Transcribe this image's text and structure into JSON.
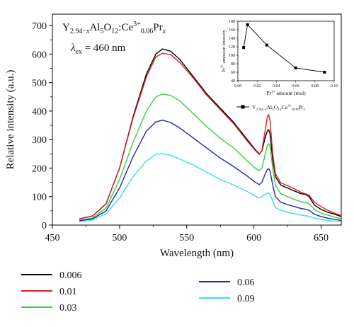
{
  "chart_data": {
    "type": "line",
    "title": "",
    "annotation": {
      "compound_base": "Y",
      "compound_sub1": "2.94−",
      "compound_sub1_var": "x",
      "compound_mid": "Al",
      "compound_sub2": "5",
      "compound_mid2": "O",
      "compound_sub3": "12",
      "compound_mid3": ":Ce",
      "compound_sup": "3+",
      "compound_sub4": "0.06",
      "compound_end": "Pr",
      "compound_end_var": "x",
      "excitation_symbol": "λ",
      "excitation_sub": "ex",
      "excitation_value": " = 460 nm"
    },
    "xlabel": "Wavelength (nm)",
    "ylabel": "Relative intensity (a.u.)",
    "xlim": [
      450,
      665
    ],
    "ylim": [
      0,
      740
    ],
    "x_ticks": [
      450,
      500,
      550,
      600,
      650
    ],
    "y_ticks": [
      0,
      100,
      200,
      300,
      400,
      500,
      600,
      700
    ],
    "grid": false,
    "legend_position": "bottom",
    "series": [
      {
        "name": "0.006",
        "color": "#000000",
        "points": [
          [
            470,
            22
          ],
          [
            480,
            32
          ],
          [
            490,
            75
          ],
          [
            500,
            200
          ],
          [
            510,
            380
          ],
          [
            520,
            530
          ],
          [
            527,
            600
          ],
          [
            532,
            618
          ],
          [
            538,
            610
          ],
          [
            545,
            580
          ],
          [
            555,
            520
          ],
          [
            565,
            460
          ],
          [
            575,
            410
          ],
          [
            585,
            360
          ],
          [
            595,
            300
          ],
          [
            601,
            265
          ],
          [
            604,
            250
          ],
          [
            606,
            260
          ],
          [
            608,
            300
          ],
          [
            610,
            330
          ],
          [
            611,
            335
          ],
          [
            612,
            320
          ],
          [
            614,
            230
          ],
          [
            616,
            170
          ],
          [
            620,
            140
          ],
          [
            625,
            130
          ],
          [
            630,
            120
          ],
          [
            635,
            110
          ],
          [
            638,
            108
          ],
          [
            641,
            100
          ],
          [
            645,
            70
          ],
          [
            650,
            55
          ],
          [
            655,
            45
          ],
          [
            660,
            38
          ],
          [
            665,
            30
          ]
        ]
      },
      {
        "name": "0.01",
        "color": "#d42020",
        "points": [
          [
            470,
            22
          ],
          [
            480,
            32
          ],
          [
            490,
            75
          ],
          [
            500,
            200
          ],
          [
            510,
            375
          ],
          [
            520,
            520
          ],
          [
            527,
            590
          ],
          [
            532,
            603
          ],
          [
            538,
            598
          ],
          [
            545,
            570
          ],
          [
            555,
            515
          ],
          [
            565,
            455
          ],
          [
            575,
            405
          ],
          [
            585,
            355
          ],
          [
            595,
            295
          ],
          [
            601,
            262
          ],
          [
            604,
            248
          ],
          [
            606,
            262
          ],
          [
            608,
            320
          ],
          [
            610,
            380
          ],
          [
            611,
            388
          ],
          [
            612,
            365
          ],
          [
            614,
            250
          ],
          [
            616,
            180
          ],
          [
            620,
            148
          ],
          [
            625,
            138
          ],
          [
            630,
            128
          ],
          [
            635,
            115
          ],
          [
            638,
            110
          ],
          [
            641,
            105
          ],
          [
            645,
            80
          ],
          [
            650,
            65
          ],
          [
            655,
            52
          ],
          [
            660,
            42
          ],
          [
            665,
            33
          ]
        ]
      },
      {
        "name": "0.03",
        "color": "#3ccf3c",
        "points": [
          [
            470,
            18
          ],
          [
            480,
            25
          ],
          [
            490,
            60
          ],
          [
            500,
            160
          ],
          [
            510,
            290
          ],
          [
            520,
            400
          ],
          [
            527,
            450
          ],
          [
            532,
            460
          ],
          [
            538,
            455
          ],
          [
            545,
            435
          ],
          [
            555,
            390
          ],
          [
            565,
            345
          ],
          [
            575,
            305
          ],
          [
            585,
            270
          ],
          [
            595,
            225
          ],
          [
            601,
            200
          ],
          [
            604,
            190
          ],
          [
            606,
            200
          ],
          [
            608,
            240
          ],
          [
            610,
            280
          ],
          [
            611,
            286
          ],
          [
            612,
            275
          ],
          [
            614,
            200
          ],
          [
            616,
            140
          ],
          [
            620,
            110
          ],
          [
            625,
            100
          ],
          [
            630,
            90
          ],
          [
            635,
            82
          ],
          [
            638,
            80
          ],
          [
            641,
            75
          ],
          [
            645,
            55
          ],
          [
            650,
            42
          ],
          [
            655,
            35
          ],
          [
            660,
            28
          ],
          [
            665,
            22
          ]
        ]
      },
      {
        "name": "0.06",
        "color": "#2323bf",
        "points": [
          [
            470,
            15
          ],
          [
            480,
            22
          ],
          [
            490,
            50
          ],
          [
            500,
            130
          ],
          [
            510,
            240
          ],
          [
            520,
            330
          ],
          [
            527,
            362
          ],
          [
            532,
            368
          ],
          [
            538,
            360
          ],
          [
            545,
            340
          ],
          [
            555,
            305
          ],
          [
            565,
            270
          ],
          [
            575,
            235
          ],
          [
            585,
            205
          ],
          [
            595,
            172
          ],
          [
            601,
            150
          ],
          [
            604,
            142
          ],
          [
            606,
            150
          ],
          [
            608,
            175
          ],
          [
            610,
            195
          ],
          [
            611,
            198
          ],
          [
            612,
            190
          ],
          [
            614,
            140
          ],
          [
            616,
            100
          ],
          [
            620,
            80
          ],
          [
            625,
            72
          ],
          [
            630,
            65
          ],
          [
            635,
            58
          ],
          [
            638,
            56
          ],
          [
            641,
            52
          ],
          [
            645,
            38
          ],
          [
            650,
            30
          ],
          [
            655,
            24
          ],
          [
            660,
            20
          ],
          [
            665,
            16
          ]
        ]
      },
      {
        "name": "0.09",
        "color": "#35e2ea",
        "points": [
          [
            470,
            12
          ],
          [
            480,
            18
          ],
          [
            490,
            40
          ],
          [
            500,
            95
          ],
          [
            510,
            170
          ],
          [
            520,
            225
          ],
          [
            527,
            248
          ],
          [
            532,
            250
          ],
          [
            538,
            245
          ],
          [
            545,
            232
          ],
          [
            555,
            210
          ],
          [
            565,
            185
          ],
          [
            575,
            160
          ],
          [
            585,
            140
          ],
          [
            595,
            118
          ],
          [
            601,
            102
          ],
          [
            604,
            95
          ],
          [
            606,
            100
          ],
          [
            608,
            108
          ],
          [
            610,
            112
          ],
          [
            611,
            113
          ],
          [
            612,
            108
          ],
          [
            614,
            85
          ],
          [
            616,
            62
          ],
          [
            620,
            52
          ],
          [
            625,
            45
          ],
          [
            630,
            40
          ],
          [
            635,
            35
          ],
          [
            638,
            33
          ],
          [
            641,
            31
          ],
          [
            645,
            24
          ],
          [
            650,
            20
          ],
          [
            655,
            16
          ],
          [
            660,
            14
          ],
          [
            665,
            12
          ]
        ]
      }
    ],
    "inset": {
      "type": "line",
      "xlabel_sup": "3+",
      "xlabel_pre": "Pr",
      "xlabel_post": " amount (mol)",
      "ylabel_pre": "Pr",
      "ylabel_sup": "3+",
      "ylabel_post": " emission intensity",
      "xlim": [
        0,
        0.1
      ],
      "ylim": [
        40,
        180
      ],
      "x_ticks": [
        "0.00",
        "0.02",
        "0.04",
        "0.06",
        "0.08",
        "0.10"
      ],
      "y_ticks": [
        "40",
        "60",
        "80",
        "100",
        "120",
        "140",
        "160",
        "180"
      ],
      "x": [
        0.006,
        0.01,
        0.03,
        0.06,
        0.09
      ],
      "y": [
        118,
        172,
        124,
        70,
        60
      ],
      "legend_label": {
        "base": "Y",
        "sub1": "2.94−",
        "sub1_var": "x",
        "mid": "Al",
        "sub2": "5",
        "mid2": "O",
        "sub3": "12",
        "mid3": "Ce",
        "sup": "3+",
        "sub4": "0.06",
        "end": "Pr",
        "end_sub": "x"
      }
    }
  }
}
